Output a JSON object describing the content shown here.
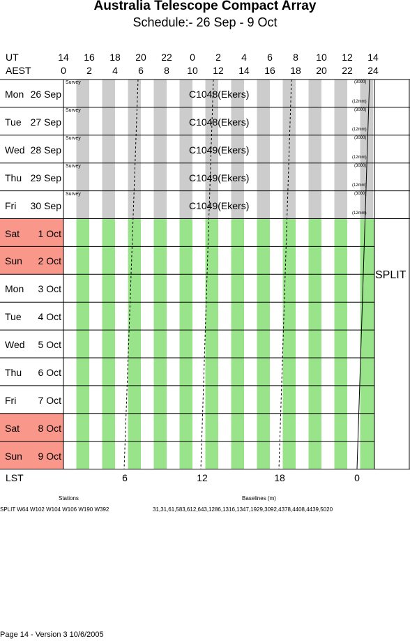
{
  "header": {
    "title": "Australia Telescope Compact Array",
    "subtitle": "Schedule:- 26 Sep - 9  Oct"
  },
  "time_axis": {
    "ut_label": "UT",
    "aest_label": "AEST",
    "ut_ticks": [
      "14",
      "16",
      "18",
      "20",
      "22",
      "0",
      "2",
      "4",
      "6",
      "8",
      "10",
      "12",
      "14"
    ],
    "aest_ticks": [
      "0",
      "2",
      "4",
      "6",
      "8",
      "10",
      "12",
      "14",
      "16",
      "18",
      "20",
      "22",
      "24"
    ]
  },
  "rows": [
    {
      "day": "Mon",
      "date": "26 Sep",
      "weekend": false,
      "grid": "gray"
    },
    {
      "day": "Tue",
      "date": "27 Sep",
      "weekend": false,
      "grid": "gray"
    },
    {
      "day": "Wed",
      "date": "28 Sep",
      "weekend": false,
      "grid": "gray"
    },
    {
      "day": "Thu",
      "date": "29 Sep",
      "weekend": false,
      "grid": "gray"
    },
    {
      "day": "Fri",
      "date": "30 Sep",
      "weekend": false,
      "grid": "gray"
    },
    {
      "day": "Sat",
      "date": "1  Oct",
      "weekend": true,
      "grid": "green"
    },
    {
      "day": "Sun",
      "date": "2  Oct",
      "weekend": true,
      "grid": "green"
    },
    {
      "day": "Mon",
      "date": "3  Oct",
      "weekend": false,
      "grid": "green"
    },
    {
      "day": "Tue",
      "date": "4  Oct",
      "weekend": false,
      "grid": "green"
    },
    {
      "day": "Wed",
      "date": "5  Oct",
      "weekend": false,
      "grid": "green"
    },
    {
      "day": "Thu",
      "date": "6  Oct",
      "weekend": false,
      "grid": "green"
    },
    {
      "day": "Fri",
      "date": "7  Oct",
      "weekend": false,
      "grid": "green"
    },
    {
      "day": "Sat",
      "date": "8  Oct",
      "weekend": true,
      "grid": "green"
    },
    {
      "day": "Sun",
      "date": "9  Oct",
      "weekend": true,
      "grid": "green"
    }
  ],
  "observations": [
    {
      "row": 0,
      "label": "C1048(Ekers)",
      "tag": "Survey",
      "freq": "(3000)",
      "note": "(12mm)"
    },
    {
      "row": 1,
      "label": "C1048(Ekers)",
      "tag": "Survey",
      "freq": "(3000)",
      "note": "(12mm)"
    },
    {
      "row": 2,
      "label": "C1049(Ekers)",
      "tag": "Survey",
      "freq": "(3000)",
      "note": "(12mm)"
    },
    {
      "row": 3,
      "label": "C1049(Ekers)",
      "tag": "Survey",
      "freq": "(3000)",
      "note": "(12mm)"
    },
    {
      "row": 4,
      "label": "C1049(Ekers)",
      "tag": "Survey",
      "freq": "(3000)",
      "note": "(12mm)"
    }
  ],
  "split_label": "SPLIT",
  "lst": {
    "label": "LST",
    "ticks": [
      "6",
      "12",
      "18",
      "0"
    ]
  },
  "stations": {
    "heading": "Stations",
    "value": "SPLIT W64 W102 W104 W106 W190 W392"
  },
  "baselines": {
    "heading": "Baselines (m)",
    "value": "31,31,61,583,612,643,1286,1316,1347,1929,3092,4378,4408,4439,5020"
  },
  "footer": "Page 14 - Version 3  10/6/2005",
  "colors": {
    "weekend": "#f9978a",
    "gray_band": "#cccccc",
    "green_band": "#99e38b",
    "grid_line": "#000000"
  }
}
